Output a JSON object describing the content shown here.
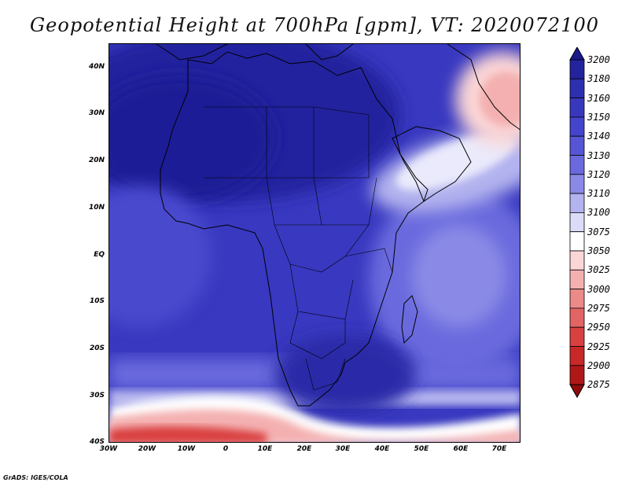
{
  "title": "Geopotential Height at 700hPa [gpm], VT: 2020072100",
  "credit": "GrADS: IGES/COLA",
  "axes": {
    "lat_labels": [
      "40N",
      "30N",
      "20N",
      "10N",
      "EQ",
      "10S",
      "20S",
      "30S",
      "40S"
    ],
    "lon_labels": [
      "30W",
      "20W",
      "10W",
      "0",
      "10E",
      "20E",
      "30E",
      "40E",
      "50E",
      "60E",
      "70E"
    ]
  },
  "colorbar": {
    "levels": [
      "3200",
      "3180",
      "3160",
      "3150",
      "3140",
      "3130",
      "3120",
      "3110",
      "3100",
      "3075",
      "3050",
      "3025",
      "3000",
      "2975",
      "2950",
      "2925",
      "2900",
      "2875"
    ],
    "colors": [
      "#1a1a8a",
      "#23239e",
      "#2e2eb0",
      "#3838bf",
      "#4444cc",
      "#5555d6",
      "#6a6ade",
      "#8a8ae6",
      "#b3b3ef",
      "#dcdcf8",
      "#ffffff",
      "#fbd6d6",
      "#f4b0b0",
      "#ec8a8a",
      "#e36464",
      "#d94040",
      "#c82828",
      "#b01818",
      "#8f0c0c"
    ]
  },
  "colors": {
    "ocean_base": "#3a3ac6",
    "coast": "#000000"
  }
}
